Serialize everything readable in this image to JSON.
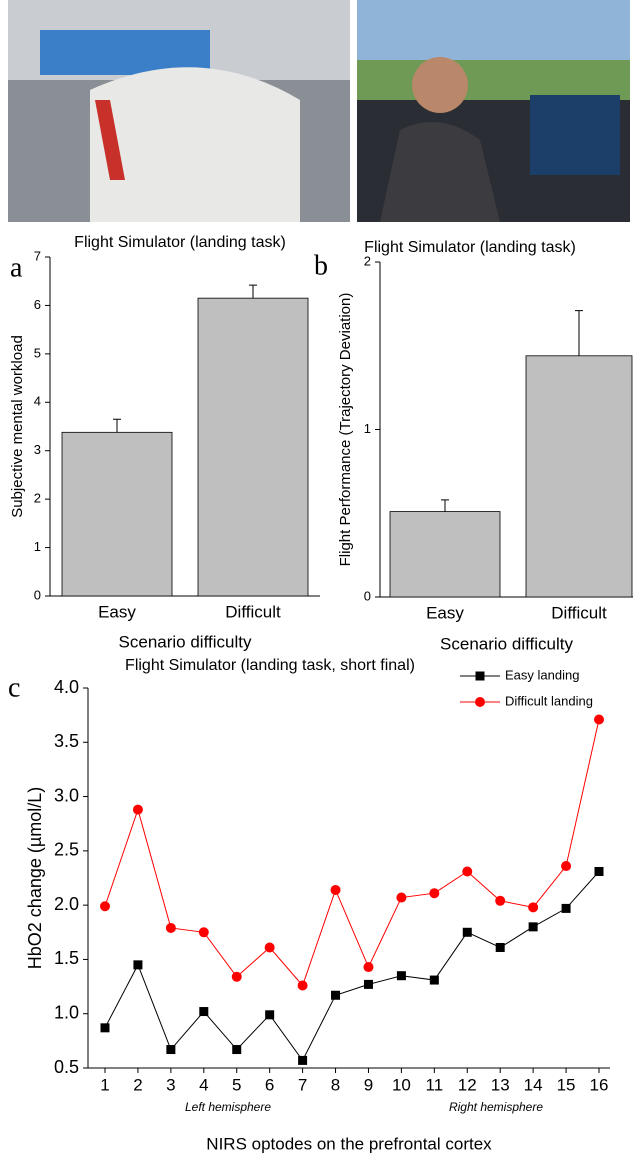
{
  "chart_data": [
    {
      "type": "bar",
      "panel_label": "a",
      "title": "Flight Simulator (landing task)",
      "x_label": "Scenario difficulty",
      "y_label": "Subjective mental workload",
      "categories": [
        "Easy",
        "Difficult"
      ],
      "values": [
        3.38,
        6.15
      ],
      "errors": [
        0.27,
        0.27
      ],
      "color": "#bfbfbf",
      "ylim": [
        0,
        7
      ],
      "yticks": [
        0,
        1,
        2,
        3,
        4,
        5,
        6,
        7
      ]
    },
    {
      "type": "bar",
      "panel_label": "b",
      "title": "Flight Simulator (landing task)",
      "x_label": "Scenario difficulty",
      "y_label": "Flight Performance (Trajectory Deviation)",
      "categories": [
        "Easy",
        "Difficult"
      ],
      "values": [
        0.51,
        1.44
      ],
      "errors": [
        0.07,
        0.27
      ],
      "color": "#bfbfbf",
      "ylim": [
        0,
        2
      ],
      "yticks": [
        0,
        1,
        2
      ]
    },
    {
      "type": "line",
      "panel_label": "c",
      "title": "Flight Simulator (landing task, short final)",
      "x_label": "NIRS optodes on the prefrontal cortex",
      "y_label": "HbO2 change (µmol/L)",
      "annotations": [
        "Left hemisphere",
        "Right hemisphere"
      ],
      "x": [
        1,
        2,
        3,
        4,
        5,
        6,
        7,
        8,
        9,
        10,
        11,
        12,
        13,
        14,
        15,
        16
      ],
      "xlim": [
        1,
        16
      ],
      "xticks": [
        1,
        2,
        3,
        4,
        5,
        6,
        7,
        8,
        9,
        10,
        11,
        12,
        13,
        14,
        15,
        16
      ],
      "ylim": [
        0.5,
        4.0
      ],
      "yticks": [
        {
          "value": 0.5,
          "label": "0.5"
        },
        {
          "value": 1,
          "label": "1.0"
        },
        {
          "value": 1.5,
          "label": "1.5"
        },
        {
          "value": 2,
          "label": "2.0"
        },
        {
          "value": 2.5,
          "label": "2.5"
        },
        {
          "value": 3,
          "label": "3.0"
        },
        {
          "value": 3.5,
          "label": "3.5"
        },
        {
          "value": 4,
          "label": "4.0"
        }
      ],
      "series": [
        {
          "name": "Easy landing",
          "color": "#000000",
          "marker": "square",
          "values": [
            0.87,
            1.45,
            0.67,
            1.02,
            0.67,
            0.99,
            0.57,
            1.17,
            1.27,
            1.35,
            1.31,
            1.75,
            1.61,
            1.8,
            1.97,
            2.31
          ]
        },
        {
          "name": "Difficult landing",
          "color": "#ff0000",
          "marker": "circle",
          "values": [
            1.99,
            2.88,
            1.79,
            1.75,
            1.34,
            1.61,
            1.26,
            2.14,
            1.43,
            2.07,
            2.11,
            2.31,
            2.04,
            1.98,
            2.36,
            3.71
          ]
        }
      ]
    }
  ]
}
